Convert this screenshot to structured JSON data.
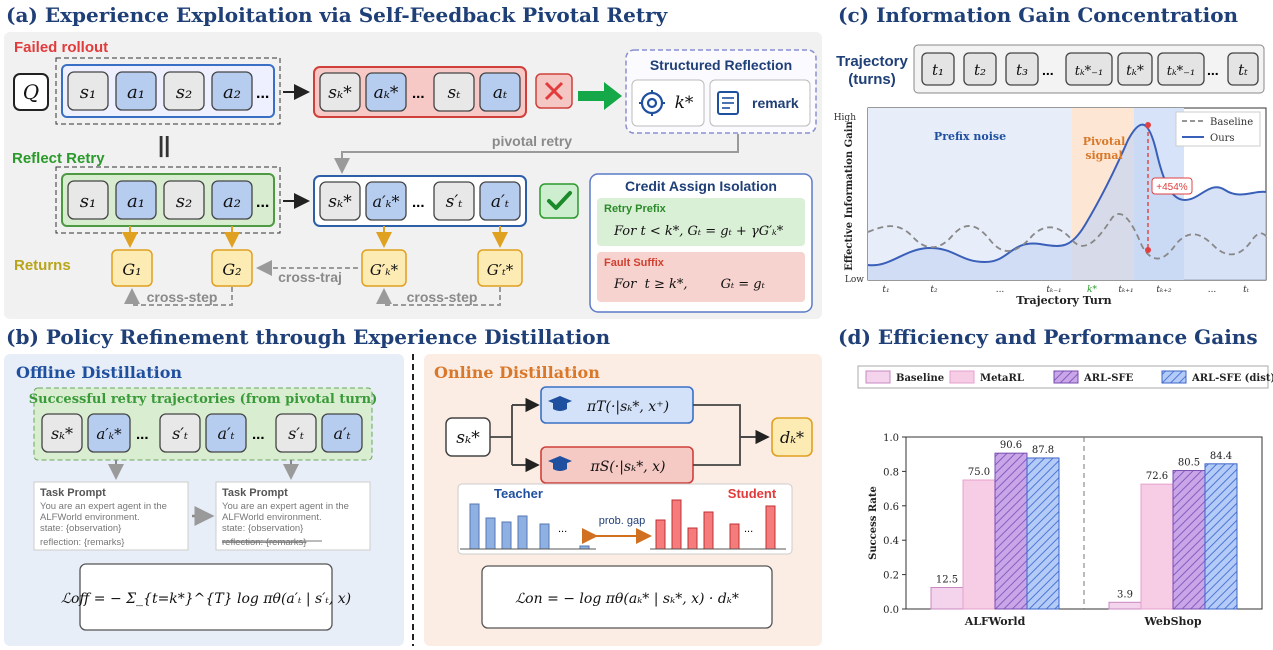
{
  "panel_a": {
    "title": "(a) Experience Exploitation via Self-Feedback Pivotal Retry",
    "failed_label": "Failed rollout",
    "reflect_label": "Reflect Retry",
    "returns_label": "Returns",
    "query": "Q",
    "fail_prefix_tokens": [
      "s₁",
      "a₁",
      "s₂",
      "a₂"
    ],
    "fail_suffix_tokens": [
      "sₖ*",
      "aₖ*",
      "sₜ",
      "aₜ"
    ],
    "retry_prefix_tokens": [
      "s₁",
      "a₁",
      "s₂",
      "a₂"
    ],
    "retry_suffix_tokens": [
      "sₖ*",
      "a′ₖ*",
      "s′ₜ",
      "a′ₜ"
    ],
    "ellipsis": "...",
    "structured_reflection": "Structured Reflection",
    "reflection_k": "k*",
    "reflection_remark": "remark",
    "pivotal_retry": "pivotal retry",
    "equal_sign": "||",
    "credit_title": "Credit  Assign Isolation",
    "retry_prefix_title": "Retry Prefix",
    "retry_prefix_formula": "For  t < k*,  Gₜ = gₜ + γG′ₖ*",
    "fault_suffix_title": "Fault Suffix",
    "fault_suffix_formula": "For  t ≥ k*,        Gₜ = gₜ",
    "returns": [
      "G₁",
      "G₂",
      "G′ₖ*",
      "G′ₜ*"
    ],
    "cross_step": "cross-step",
    "cross_traj": "cross-traj"
  },
  "panel_b": {
    "title": "(b) Policy Refinement through Experience Distillation",
    "offline_title": "Offline Distillation",
    "online_title": "Online Distillation",
    "successful_label": "Successful retry trajectories (from pivotal turn)",
    "offline_tokens": [
      "sₖ*",
      "a′ₖ*",
      "s′ₜ",
      "a′ₜ",
      "s′ₜ",
      "a′ₜ"
    ],
    "prompt_title": "Task Prompt",
    "prompt_line1": "You are an expert agent in the",
    "prompt_line2": "ALFWorld environment.",
    "prompt_state": "state: {observation}",
    "prompt_reflection": "reflection: {remarks}",
    "offline_loss": "ℒoff = − Σ_{t=k*}^{T} log πθ(a′ₜ | s′ₜ, x)",
    "online_state": "sₖ*",
    "teacher_policy": "πT(·|sₖ*, x⁺)",
    "student_policy": "πS(·|sₖ*, x)",
    "d_label": "dₖ*",
    "teacher_label": "Teacher",
    "student_label": "Student",
    "prob_gap": "prob. gap",
    "online_loss": "ℒon = − log πθ(aₖ* | sₖ*, x) · dₖ*"
  },
  "panel_c": {
    "title": "(c) Information Gain Concentration",
    "trajectory_label": "Trajectory",
    "turns_label": "(turns)",
    "turn_tokens": [
      "t₁",
      "t₂",
      "t₃",
      "tₖ*₋₁",
      "tₖ*",
      "tₖ*₋₁",
      "tₜ"
    ],
    "ylabel": "Effective Information Gain",
    "xlabel": "Trajectory Turn",
    "y_high": "High",
    "y_low": "Low",
    "x_ticks": [
      "t₁",
      "t₂",
      "...",
      "tₖ₋₁",
      "k*",
      "tₖ₊₁",
      "tₖ₊₂",
      "...",
      "tₜ"
    ],
    "prefix_noise": "Prefix noise",
    "pivotal_signal_1": "Pivotal",
    "pivotal_signal_2": "signal",
    "gain_annotation": "+454%",
    "legend": [
      "Baseline",
      "Ours"
    ]
  },
  "panel_d": {
    "title": "(d) Efficiency and Performance Gains",
    "chart_data": {
      "type": "bar",
      "categories": [
        "ALFWorld",
        "WebShop"
      ],
      "series": [
        {
          "name": "Baseline",
          "values": [
            0.125,
            0.039
          ],
          "labels": [
            "12.5",
            "3.9"
          ],
          "color": "#f4d4ec"
        },
        {
          "name": "MetaRL",
          "values": [
            0.75,
            0.726
          ],
          "labels": [
            "75.0",
            "72.6"
          ],
          "color": "#f7cde6"
        },
        {
          "name": "ARL-SFE",
          "values": [
            0.906,
            0.805
          ],
          "labels": [
            "90.6",
            "80.5"
          ],
          "color": "#b48bdc"
        },
        {
          "name": "ARL-SFE (dist)",
          "values": [
            0.878,
            0.844
          ],
          "labels": [
            "87.8",
            "84.4"
          ],
          "color": "#8fb3f2"
        }
      ],
      "ylabel": "Success Rate",
      "ylim": [
        0,
        1.0
      ],
      "yticks": [
        "0.0",
        "0.2",
        "0.4",
        "0.6",
        "0.8",
        "1.0"
      ],
      "legend_position": "top"
    }
  },
  "colors": {
    "title_blue": "#1f3f77",
    "failed_red": "#e23b3b",
    "retry_green": "#2a9a2a",
    "returns_gold": "#b8a51a",
    "offline_orange": "#d9782a"
  }
}
